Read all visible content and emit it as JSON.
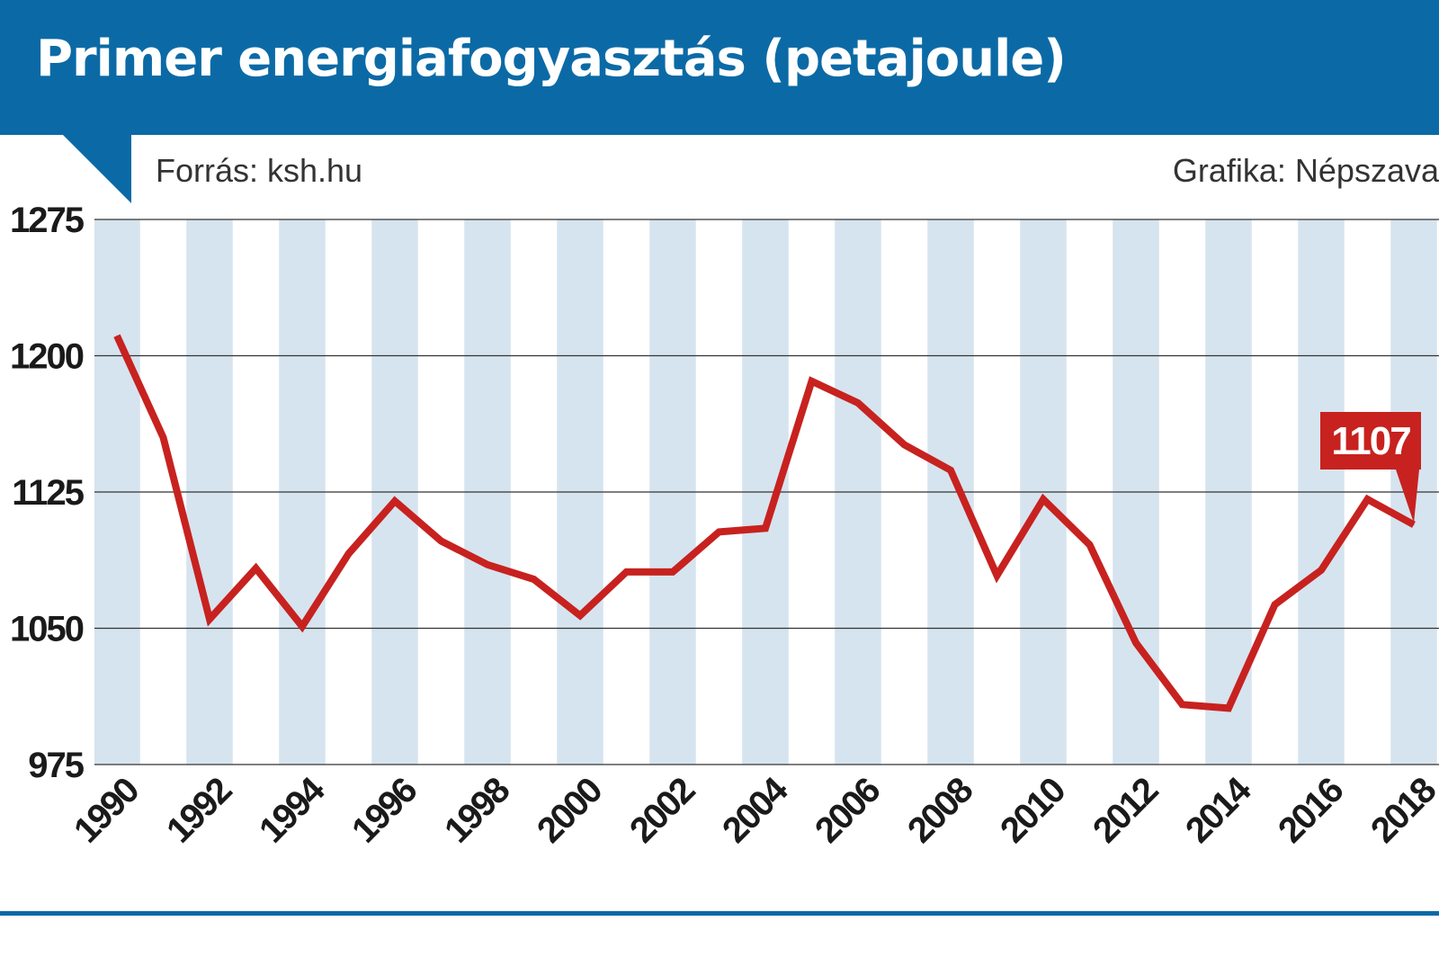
{
  "header": {
    "title": "Primer energiafogyasztás (petajoule)",
    "source": "Forrás: ksh.hu",
    "credit": "Grafika: Népszava"
  },
  "colors": {
    "header_blue": "#0b6aa6",
    "stripe": "#d6e4ef",
    "line": "#c7221f",
    "callout": "#c7221f",
    "grid": "#333333"
  },
  "chart_data": {
    "type": "line",
    "title": "Primer energiafogyasztás (petajoule)",
    "xlabel": "",
    "ylabel": "",
    "ylim": [
      975,
      1275
    ],
    "yticks": [
      975,
      1050,
      1125,
      1200,
      1275
    ],
    "xticks": [
      "1990",
      "1992",
      "1994",
      "1996",
      "1998",
      "2000",
      "2002",
      "2004",
      "2006",
      "2008",
      "2010",
      "2012",
      "2014",
      "2016",
      "2018"
    ],
    "grid": true,
    "x": [
      1990,
      1991,
      1992,
      1993,
      1994,
      1995,
      1996,
      1997,
      1998,
      1999,
      2000,
      2001,
      2002,
      2003,
      2004,
      2005,
      2006,
      2007,
      2008,
      2009,
      2010,
      2011,
      2012,
      2013,
      2014,
      2015,
      2016,
      2017,
      2018
    ],
    "series": [
      {
        "values": [
          1211,
          1155,
          1055,
          1083,
          1051,
          1091,
          1120,
          1098,
          1085,
          1077,
          1057,
          1081,
          1081,
          1103,
          1105,
          1186,
          1174,
          1151,
          1137,
          1079,
          1121,
          1096,
          1042,
          1008,
          1006,
          1063,
          1082,
          1121,
          1107
        ]
      }
    ],
    "annotations": [
      {
        "x": 2018,
        "label": "1107"
      }
    ]
  }
}
